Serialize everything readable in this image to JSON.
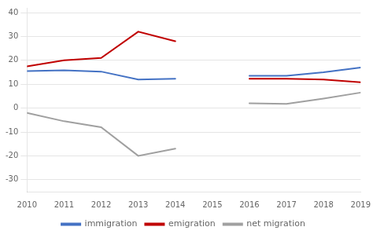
{
  "chart_data": {
    "type": "line",
    "x": [
      2010,
      2011,
      2012,
      2013,
      2014,
      2015,
      2016,
      2017,
      2018,
      2019
    ],
    "series": [
      {
        "name": "immigration",
        "color": "#4472c4",
        "values": [
          15.5,
          15.8,
          15.3,
          12.0,
          12.3,
          null,
          13.5,
          13.5,
          15.0,
          17.0
        ]
      },
      {
        "name": "emigration",
        "color": "#c00000",
        "values": [
          17.5,
          20.0,
          21.0,
          32.0,
          28.0,
          null,
          12.3,
          12.3,
          12.0,
          10.8
        ]
      },
      {
        "name": "net migration",
        "color": "#a0a0a0",
        "values": [
          -2.0,
          -5.5,
          -8.0,
          -20.0,
          -17.0,
          null,
          2.0,
          1.8,
          4.0,
          6.5
        ]
      }
    ],
    "xlim": [
      2010,
      2019
    ],
    "xticks": [
      2010,
      2011,
      2012,
      2013,
      2014,
      2015,
      2016,
      2017,
      2018,
      2019
    ],
    "ylim": [
      -35,
      42
    ],
    "yticks": [
      -30,
      -20,
      -10,
      0,
      10,
      20,
      30,
      40
    ],
    "grid": true,
    "legend": "bottom"
  }
}
